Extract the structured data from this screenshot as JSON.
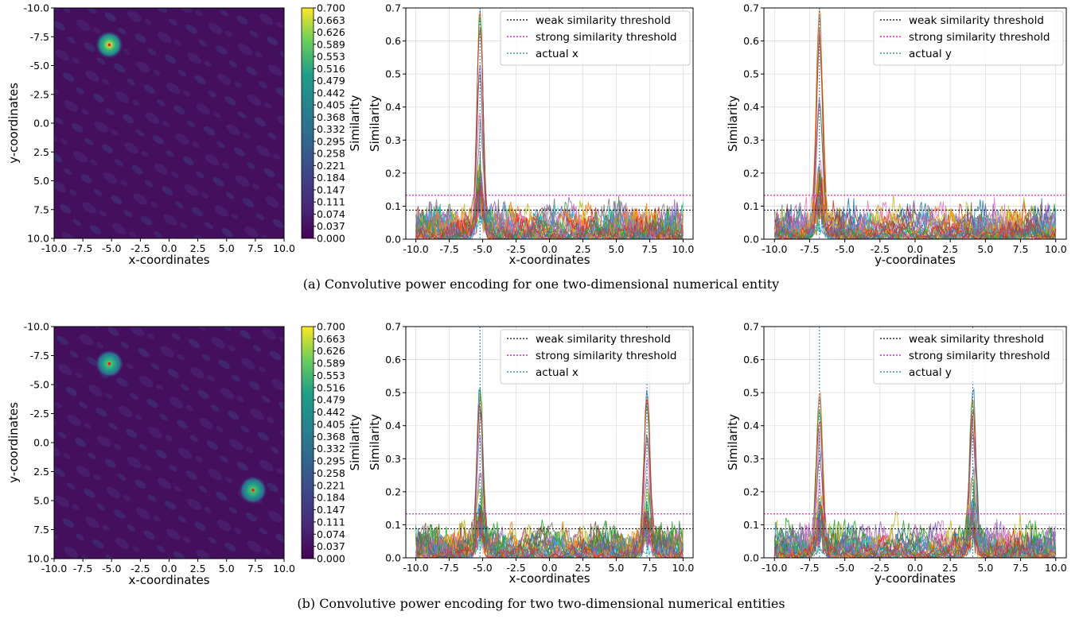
{
  "captions": {
    "a": "(a) Convolutive power encoding for one two-dimensional numerical entity",
    "b": "(b) Convolutive power encoding for two two-dimensional numerical entities"
  },
  "colorbar": {
    "label": "Similarity",
    "ticks": [
      "0.700",
      "0.663",
      "0.626",
      "0.589",
      "0.553",
      "0.516",
      "0.479",
      "0.442",
      "0.405",
      "0.368",
      "0.332",
      "0.295",
      "0.258",
      "0.221",
      "0.184",
      "0.147",
      "0.111",
      "0.074",
      "0.037",
      "0.000"
    ]
  },
  "colors": {
    "weak": "#000000",
    "strong": "#cc00cc",
    "actual": "#1f77b4",
    "heat_bg": "#44105e",
    "grid": "#dddddd"
  },
  "chart_data": [
    {
      "id": "a1",
      "type": "heatmap",
      "xlabel": "x-coordinates",
      "ylabel": "y-coordinates",
      "xlim": [
        -10,
        10
      ],
      "ylim": [
        10,
        -10
      ],
      "x_ticks": [
        "-10.0",
        "-7.5",
        "-5.0",
        "-2.5",
        "0.0",
        "2.5",
        "5.0",
        "7.5",
        "10.0"
      ],
      "y_ticks": [
        "-10.0",
        "-7.5",
        "-5.0",
        "-2.5",
        "0.0",
        "2.5",
        "5.0",
        "7.5",
        "10.0"
      ],
      "color_range": [
        0,
        0.7
      ],
      "peaks": [
        {
          "x": -5.2,
          "y": -6.8,
          "value": 0.68
        }
      ]
    },
    {
      "id": "a2",
      "type": "line",
      "xlabel": "x-coordinates",
      "ylabel": "Similarity",
      "xlim": [
        -10,
        10
      ],
      "ylim": [
        0,
        0.7
      ],
      "x_ticks": [
        "-10.0",
        "-7.5",
        "-5.0",
        "-2.5",
        "0.0",
        "2.5",
        "5.0",
        "7.5",
        "10.0"
      ],
      "y_ticks": [
        "0.0",
        "0.1",
        "0.2",
        "0.3",
        "0.4",
        "0.5",
        "0.6",
        "0.7"
      ],
      "legend": [
        "weak similarity threshold",
        "strong similarity threshold",
        "actual x"
      ],
      "legend_position": "top-right",
      "weak_threshold": 0.088,
      "strong_threshold": 0.133,
      "actual": [
        -5.2
      ],
      "peak_heights": [
        [
          0.68,
          0.66,
          0.64,
          0.62,
          0.53,
          0.47,
          0.36,
          0.28,
          0.2,
          0.18
        ]
      ]
    },
    {
      "id": "a3",
      "type": "line",
      "xlabel": "y-coordinates",
      "ylabel": "Similarity",
      "xlim": [
        -10,
        10
      ],
      "ylim": [
        0,
        0.7
      ],
      "x_ticks": [
        "-10.0",
        "-7.5",
        "-5.0",
        "-2.5",
        "0.0",
        "2.5",
        "5.0",
        "7.5",
        "10.0"
      ],
      "y_ticks": [
        "0.0",
        "0.1",
        "0.2",
        "0.3",
        "0.4",
        "0.5",
        "0.6",
        "0.7"
      ],
      "legend": [
        "weak similarity threshold",
        "strong similarity threshold",
        "actual y"
      ],
      "legend_position": "top-right",
      "weak_threshold": 0.088,
      "strong_threshold": 0.133,
      "actual": [
        -6.8
      ],
      "peak_heights": [
        [
          0.68,
          0.67,
          0.58,
          0.57,
          0.41,
          0.4,
          0.22,
          0.2,
          0.15,
          0.13
        ]
      ]
    },
    {
      "id": "b1",
      "type": "heatmap",
      "xlabel": "x-coordinates",
      "ylabel": "y-coordinates",
      "xlim": [
        -10,
        10
      ],
      "ylim": [
        10,
        -10
      ],
      "x_ticks": [
        "-10.0",
        "-7.5",
        "-5.0",
        "-2.5",
        "0.0",
        "2.5",
        "5.0",
        "7.5",
        "10.0"
      ],
      "y_ticks": [
        "-10.0",
        "-7.5",
        "-5.0",
        "-2.5",
        "0.0",
        "2.5",
        "5.0",
        "7.5",
        "10.0"
      ],
      "color_range": [
        0,
        0.7
      ],
      "peaks": [
        {
          "x": -5.2,
          "y": -6.8,
          "value": 0.46
        },
        {
          "x": 7.3,
          "y": 4.1,
          "value": 0.46
        }
      ]
    },
    {
      "id": "b2",
      "type": "line",
      "xlabel": "x-coordinates",
      "ylabel": "Similarity",
      "xlim": [
        -10,
        10
      ],
      "ylim": [
        0,
        0.7
      ],
      "x_ticks": [
        "-10.0",
        "-7.5",
        "-5.0",
        "-2.5",
        "0.0",
        "2.5",
        "5.0",
        "7.5",
        "10.0"
      ],
      "y_ticks": [
        "0.0",
        "0.1",
        "0.2",
        "0.3",
        "0.4",
        "0.5",
        "0.6",
        "0.7"
      ],
      "legend": [
        "weak similarity threshold",
        "strong similarity threshold",
        "actual x"
      ],
      "legend_position": "top-right",
      "weak_threshold": 0.088,
      "strong_threshold": 0.133,
      "actual": [
        -5.2,
        7.3
      ],
      "peak_heights": [
        [
          0.49,
          0.47,
          0.46,
          0.45,
          0.37,
          0.36,
          0.25,
          0.24,
          0.15,
          0.14
        ],
        [
          0.5,
          0.48,
          0.46,
          0.45,
          0.37,
          0.36,
          0.25,
          0.24,
          0.15,
          0.14
        ]
      ]
    },
    {
      "id": "b3",
      "type": "line",
      "xlabel": "y-coordinates",
      "ylabel": "Similarity",
      "xlim": [
        -10,
        10
      ],
      "ylim": [
        0,
        0.7
      ],
      "x_ticks": [
        "-10.0",
        "-7.5",
        "-5.0",
        "-2.5",
        "0.0",
        "2.5",
        "5.0",
        "7.5",
        "10.0"
      ],
      "y_ticks": [
        "0.0",
        "0.1",
        "0.2",
        "0.3",
        "0.4",
        "0.5",
        "0.6",
        "0.7"
      ],
      "legend": [
        "weak similarity threshold",
        "strong similarity threshold",
        "actual y"
      ],
      "legend_position": "top-right",
      "weak_threshold": 0.088,
      "strong_threshold": 0.133,
      "actual": [
        -6.8,
        4.1
      ],
      "peak_heights": [
        [
          0.49,
          0.48,
          0.42,
          0.41,
          0.3,
          0.29,
          0.15,
          0.14,
          0.12,
          0.1
        ],
        [
          0.49,
          0.47,
          0.45,
          0.44,
          0.37,
          0.34,
          0.22,
          0.21,
          0.15,
          0.14
        ]
      ]
    }
  ]
}
